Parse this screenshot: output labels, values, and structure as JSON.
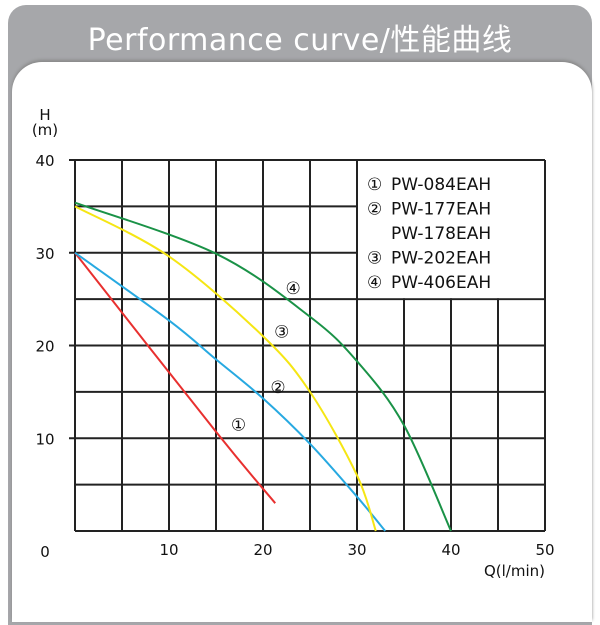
{
  "header": {
    "title": "Performance curve/性能曲线"
  },
  "chart_data": {
    "type": "line",
    "title": "Performance curve/性能曲线",
    "xlabel": "Q(l/min)",
    "ylabel_top": "H",
    "ylabel_unit": "(m)",
    "xlim": [
      0,
      50
    ],
    "ylim": [
      0,
      40
    ],
    "xticks": [
      10,
      20,
      30,
      40,
      50
    ],
    "yticks": [
      0,
      10,
      20,
      30,
      40
    ],
    "grid": true,
    "grid_step_x": 5,
    "grid_step_y": 5,
    "legend_position": "top-right",
    "legend": [
      {
        "marker": "①",
        "label": "PW-084EAH"
      },
      {
        "marker": "②",
        "label": "PW-177EAH"
      },
      {
        "marker": "",
        "label": "PW-178EAH"
      },
      {
        "marker": "③",
        "label": "PW-202EAH"
      },
      {
        "marker": "④",
        "label": "PW-406EAH"
      }
    ],
    "series": [
      {
        "name": "①",
        "color": "#e8302f",
        "x": [
          0,
          15,
          21.3
        ],
        "y": [
          30,
          10.7,
          3.0
        ],
        "label_at": [
          17.4,
          11.5
        ]
      },
      {
        "name": "②",
        "color": "#27a9e1",
        "x": [
          0,
          10,
          15,
          20,
          25,
          30,
          33
        ],
        "y": [
          30,
          22.7,
          18.5,
          14.3,
          9.4,
          3.7,
          0
        ],
        "label_at": [
          21.6,
          15.5
        ]
      },
      {
        "name": "③",
        "color": "#f5e614",
        "x": [
          0,
          10,
          20,
          25,
          30,
          32
        ],
        "y": [
          35,
          29.6,
          21,
          15,
          6,
          0
        ],
        "label_at": [
          22,
          21.5
        ]
      },
      {
        "name": "④",
        "color": "#1a9247",
        "x": [
          0,
          15,
          25,
          30,
          35,
          40
        ],
        "y": [
          35.4,
          29.9,
          23.1,
          18.3,
          11.4,
          0
        ],
        "label_at": [
          23.2,
          26.2
        ]
      }
    ]
  }
}
